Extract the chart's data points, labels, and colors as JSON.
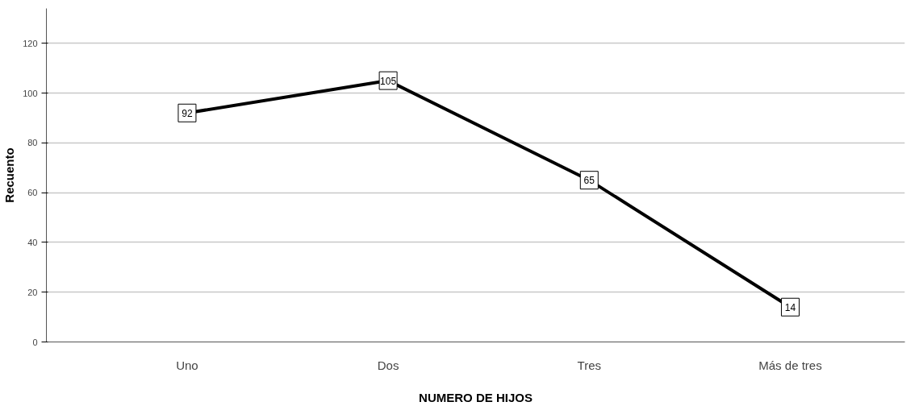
{
  "chart_data": {
    "type": "line",
    "xlabel": "NUMERO DE HIJOS",
    "ylabel": "Recuento",
    "categories": [
      "Uno",
      "Dos",
      "Tres",
      "Más de tres"
    ],
    "series": [
      {
        "color": "#000000",
        "values": [
          92,
          105,
          65,
          14
        ]
      }
    ],
    "ylim": [
      0,
      134
    ],
    "yticks": [
      0,
      20,
      40,
      60,
      80,
      100,
      120
    ],
    "grid": "y",
    "data_labels": true,
    "marker": "square",
    "line_style": "solid"
  }
}
